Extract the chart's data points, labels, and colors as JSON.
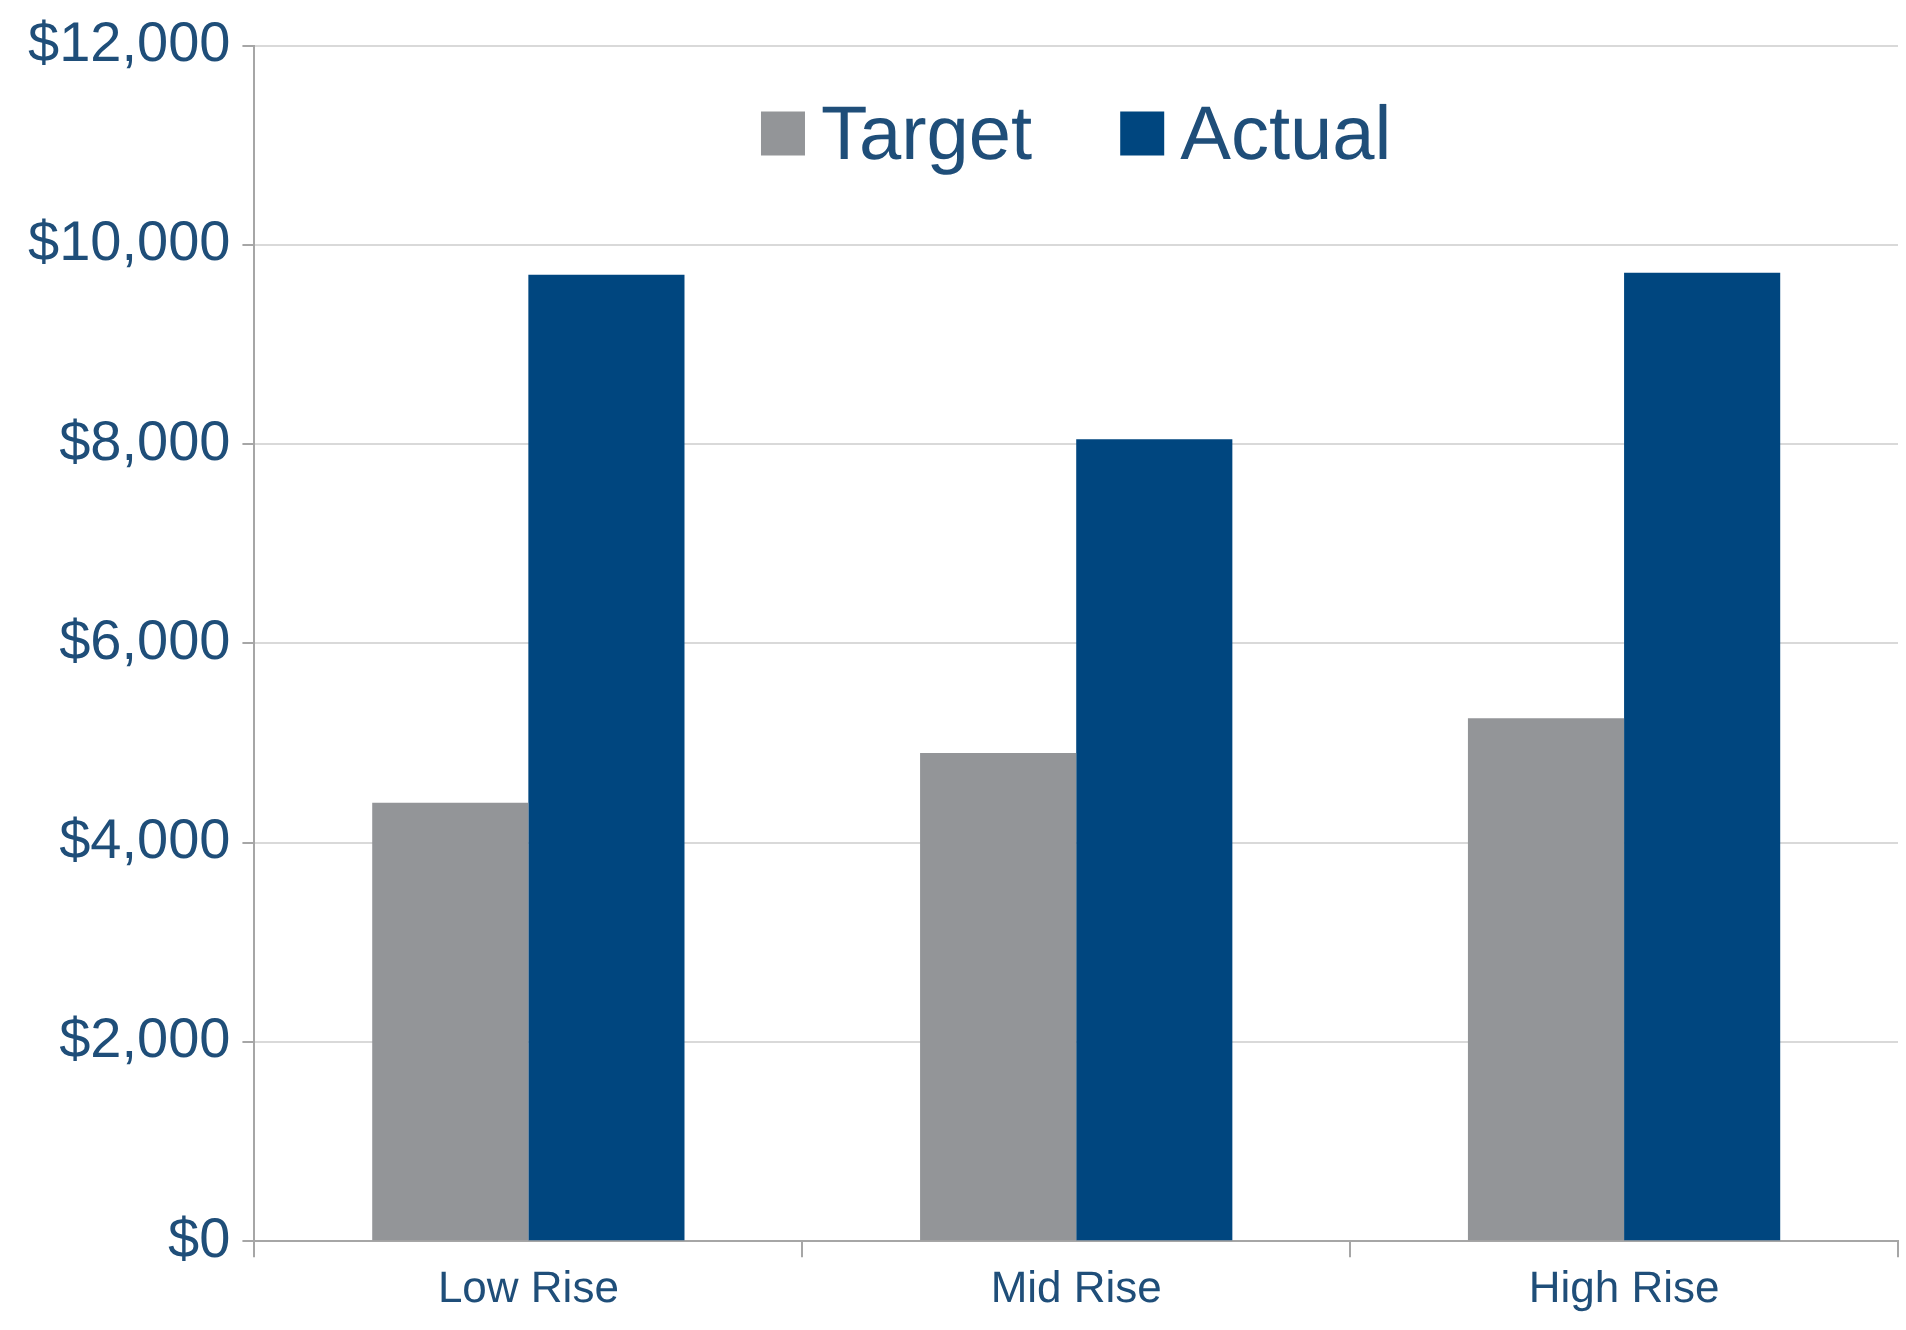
{
  "chart_data": {
    "type": "bar",
    "categories": [
      "Low Rise",
      "Mid Rise",
      "High Rise"
    ],
    "series": [
      {
        "name": "Target",
        "color": "#939598",
        "values": [
          4400,
          4900,
          5250
        ]
      },
      {
        "name": "Actual",
        "color": "#00467f",
        "values": [
          9700,
          8050,
          9720
        ]
      }
    ],
    "ylim": [
      0,
      12000
    ],
    "yticks": [
      {
        "value": 0,
        "label": "$0"
      },
      {
        "value": 2000,
        "label": "$2,000"
      },
      {
        "value": 4000,
        "label": "$4,000"
      },
      {
        "value": 6000,
        "label": "$6,000"
      },
      {
        "value": 8000,
        "label": "$8,000"
      },
      {
        "value": 10000,
        "label": "$10,000"
      },
      {
        "value": 12000,
        "label": "$12,000"
      }
    ],
    "grid": "y",
    "legend": "top"
  }
}
